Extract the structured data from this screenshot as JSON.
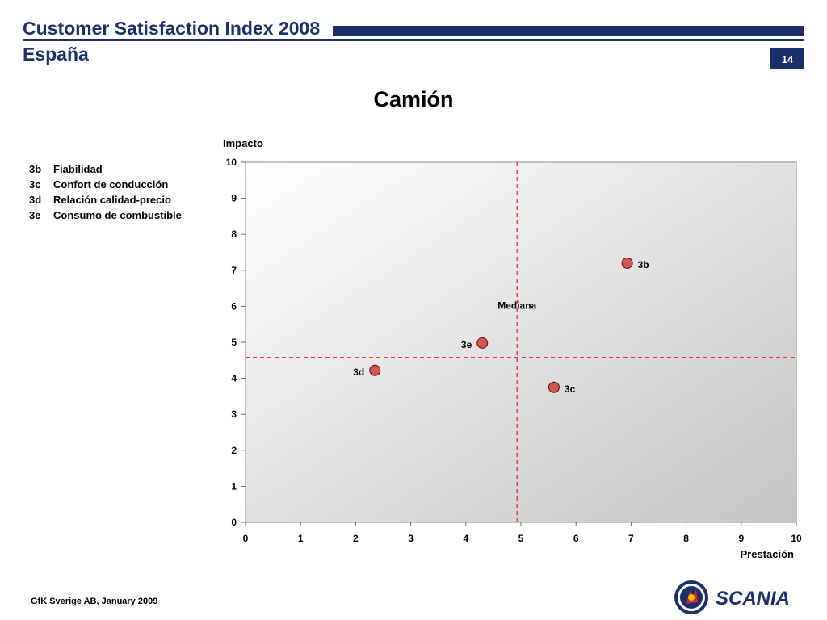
{
  "header": {
    "title": "Customer Satisfaction Index 2008",
    "subtitle": "España",
    "page_number": "14",
    "brand_color": "#1b2f6b"
  },
  "legend": [
    {
      "code": "3b",
      "label": "Fiabilidad"
    },
    {
      "code": "3c",
      "label": "Confort de conducción"
    },
    {
      "code": "3d",
      "label": "Relación calidad-precio"
    },
    {
      "code": "3e",
      "label": "Consumo de combustible"
    }
  ],
  "chart_data": {
    "type": "scatter",
    "title": "Camión",
    "xlabel": "Prestación",
    "ylabel": "Impacto",
    "xlim": [
      0,
      10
    ],
    "ylim": [
      0,
      10
    ],
    "x_ticks": [
      "0",
      "1",
      "2",
      "3",
      "4",
      "5",
      "6",
      "7",
      "8",
      "9",
      "10"
    ],
    "y_ticks": [
      "0",
      "1",
      "2",
      "3",
      "4",
      "5",
      "6",
      "7",
      "8",
      "9",
      "10"
    ],
    "grid": false,
    "median": {
      "label": "Mediana",
      "x": 4.93,
      "y": 4.58
    },
    "point_color": "#d9534f",
    "median_color": "#e02020",
    "points": [
      {
        "label": "3b",
        "x": 6.93,
        "y": 7.2
      },
      {
        "label": "3c",
        "x": 5.6,
        "y": 3.75
      },
      {
        "label": "3d",
        "x": 2.35,
        "y": 4.22
      },
      {
        "label": "3e",
        "x": 4.3,
        "y": 4.98
      }
    ]
  },
  "footer": {
    "text": "GfK Sverige AB, January 2009"
  },
  "logo": {
    "text": "SCANIA",
    "icon": "scania-griffin-icon"
  }
}
